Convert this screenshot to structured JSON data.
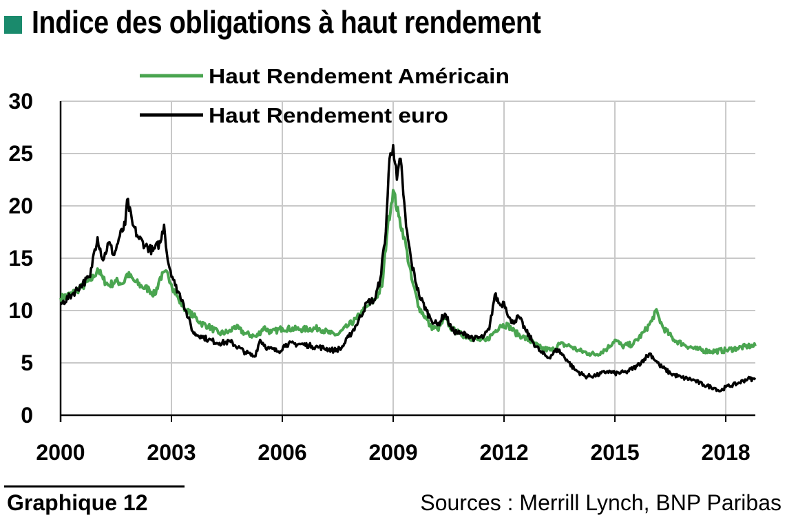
{
  "header": {
    "title": "Indice des obligations à haut rendement",
    "marker_color": "#1a8a6c"
  },
  "footer": {
    "label": "Graphique 12",
    "source": "Sources : Merrill Lynch, BNP Paribas"
  },
  "chart_data": {
    "type": "line",
    "title": "Indice des obligations à haut rendement",
    "xlabel": "",
    "ylabel": "",
    "xlim": [
      2000,
      2018.8
    ],
    "ylim": [
      0,
      30
    ],
    "x_ticks": [
      "2000",
      "2003",
      "2006",
      "2009",
      "2012",
      "2015",
      "2018"
    ],
    "y_ticks": [
      "0",
      "5",
      "10",
      "15",
      "20",
      "25",
      "30"
    ],
    "grid": true,
    "legend": "top-left",
    "series": [
      {
        "name": "Haut Rendement Américain",
        "color": "#4aa550",
        "points": [
          [
            2000.0,
            11.2
          ],
          [
            2000.3,
            11.6
          ],
          [
            2000.6,
            12.3
          ],
          [
            2000.9,
            13.2
          ],
          [
            2001.0,
            14.0
          ],
          [
            2001.15,
            13.0
          ],
          [
            2001.3,
            12.4
          ],
          [
            2001.5,
            12.8
          ],
          [
            2001.7,
            12.6
          ],
          [
            2001.8,
            13.5
          ],
          [
            2002.0,
            12.8
          ],
          [
            2002.2,
            12.3
          ],
          [
            2002.4,
            12.0
          ],
          [
            2002.55,
            11.5
          ],
          [
            2002.7,
            13.2
          ],
          [
            2002.9,
            13.6
          ],
          [
            2003.0,
            12.5
          ],
          [
            2003.2,
            11.0
          ],
          [
            2003.4,
            10.0
          ],
          [
            2003.6,
            9.5
          ],
          [
            2003.8,
            8.8
          ],
          [
            2004.0,
            8.5
          ],
          [
            2004.3,
            7.8
          ],
          [
            2004.6,
            8.0
          ],
          [
            2004.7,
            8.5
          ],
          [
            2005.0,
            7.8
          ],
          [
            2005.3,
            7.5
          ],
          [
            2005.5,
            8.4
          ],
          [
            2005.7,
            7.9
          ],
          [
            2006.0,
            8.3
          ],
          [
            2006.5,
            8.2
          ],
          [
            2007.0,
            8.3
          ],
          [
            2007.3,
            7.8
          ],
          [
            2007.5,
            7.7
          ],
          [
            2007.8,
            8.6
          ],
          [
            2008.0,
            9.2
          ],
          [
            2008.3,
            10.4
          ],
          [
            2008.5,
            11.0
          ],
          [
            2008.7,
            12.3
          ],
          [
            2008.85,
            18.0
          ],
          [
            2009.0,
            21.5
          ],
          [
            2009.15,
            19.0
          ],
          [
            2009.3,
            17.0
          ],
          [
            2009.5,
            13.0
          ],
          [
            2009.7,
            10.3
          ],
          [
            2009.9,
            9.2
          ],
          [
            2010.0,
            8.5
          ],
          [
            2010.2,
            8.2
          ],
          [
            2010.4,
            9.2
          ],
          [
            2010.6,
            8.2
          ],
          [
            2010.8,
            7.8
          ],
          [
            2011.0,
            7.5
          ],
          [
            2011.3,
            7.2
          ],
          [
            2011.5,
            7.1
          ],
          [
            2011.7,
            7.8
          ],
          [
            2011.9,
            8.6
          ],
          [
            2012.1,
            8.6
          ],
          [
            2012.3,
            7.9
          ],
          [
            2012.5,
            7.5
          ],
          [
            2012.8,
            6.9
          ],
          [
            2013.0,
            6.4
          ],
          [
            2013.3,
            6.2
          ],
          [
            2013.5,
            6.8
          ],
          [
            2013.8,
            6.6
          ],
          [
            2014.0,
            6.2
          ],
          [
            2014.3,
            5.9
          ],
          [
            2014.5,
            5.8
          ],
          [
            2014.8,
            6.4
          ],
          [
            2015.0,
            7.2
          ],
          [
            2015.2,
            6.6
          ],
          [
            2015.5,
            6.8
          ],
          [
            2015.8,
            8.0
          ],
          [
            2016.0,
            9.0
          ],
          [
            2016.1,
            10.0
          ],
          [
            2016.3,
            8.4
          ],
          [
            2016.6,
            7.2
          ],
          [
            2016.9,
            6.7
          ],
          [
            2017.2,
            6.3
          ],
          [
            2017.6,
            6.1
          ],
          [
            2018.0,
            6.2
          ],
          [
            2018.3,
            6.4
          ],
          [
            2018.6,
            6.6
          ],
          [
            2018.8,
            6.6
          ]
        ]
      },
      {
        "name": "Haut Rendement euro",
        "color": "#000000",
        "points": [
          [
            2000.0,
            10.6
          ],
          [
            2000.3,
            11.5
          ],
          [
            2000.6,
            12.6
          ],
          [
            2000.8,
            13.2
          ],
          [
            2000.9,
            15.5
          ],
          [
            2001.0,
            17.0
          ],
          [
            2001.15,
            14.8
          ],
          [
            2001.3,
            16.5
          ],
          [
            2001.45,
            15.3
          ],
          [
            2001.6,
            17.1
          ],
          [
            2001.75,
            18.2
          ],
          [
            2001.8,
            20.6
          ],
          [
            2001.95,
            18.2
          ],
          [
            2002.1,
            17.0
          ],
          [
            2002.3,
            16.2
          ],
          [
            2002.5,
            15.7
          ],
          [
            2002.7,
            16.5
          ],
          [
            2002.8,
            18.2
          ],
          [
            2002.9,
            14.8
          ],
          [
            2003.1,
            12.4
          ],
          [
            2003.3,
            11.0
          ],
          [
            2003.45,
            9.3
          ],
          [
            2003.6,
            7.8
          ],
          [
            2003.8,
            7.6
          ],
          [
            2004.0,
            7.2
          ],
          [
            2004.3,
            6.9
          ],
          [
            2004.6,
            7.0
          ],
          [
            2005.0,
            6.0
          ],
          [
            2005.25,
            5.6
          ],
          [
            2005.4,
            7.2
          ],
          [
            2005.6,
            6.4
          ],
          [
            2005.9,
            6.1
          ],
          [
            2006.1,
            6.8
          ],
          [
            2006.5,
            6.8
          ],
          [
            2006.8,
            6.6
          ],
          [
            2007.0,
            6.5
          ],
          [
            2007.4,
            6.2
          ],
          [
            2007.6,
            6.4
          ],
          [
            2007.8,
            7.5
          ],
          [
            2008.0,
            8.6
          ],
          [
            2008.3,
            10.8
          ],
          [
            2008.5,
            11.0
          ],
          [
            2008.65,
            13.0
          ],
          [
            2008.8,
            17.5
          ],
          [
            2008.9,
            24.5
          ],
          [
            2009.0,
            25.8
          ],
          [
            2009.1,
            22.5
          ],
          [
            2009.2,
            24.5
          ],
          [
            2009.35,
            18.0
          ],
          [
            2009.5,
            14.5
          ],
          [
            2009.7,
            11.5
          ],
          [
            2009.9,
            10.0
          ],
          [
            2010.0,
            9.3
          ],
          [
            2010.2,
            8.6
          ],
          [
            2010.4,
            9.7
          ],
          [
            2010.6,
            8.1
          ],
          [
            2010.8,
            7.8
          ],
          [
            2011.0,
            7.7
          ],
          [
            2011.2,
            7.3
          ],
          [
            2011.45,
            7.5
          ],
          [
            2011.6,
            8.2
          ],
          [
            2011.75,
            11.5
          ],
          [
            2011.9,
            10.5
          ],
          [
            2012.0,
            10.8
          ],
          [
            2012.2,
            8.8
          ],
          [
            2012.4,
            9.4
          ],
          [
            2012.6,
            8.0
          ],
          [
            2012.8,
            6.9
          ],
          [
            2013.0,
            6.0
          ],
          [
            2013.2,
            5.5
          ],
          [
            2013.45,
            6.3
          ],
          [
            2013.7,
            5.3
          ],
          [
            2013.9,
            4.4
          ],
          [
            2014.2,
            3.7
          ],
          [
            2014.5,
            3.8
          ],
          [
            2014.8,
            4.2
          ],
          [
            2015.0,
            4.0
          ],
          [
            2015.3,
            4.1
          ],
          [
            2015.6,
            4.7
          ],
          [
            2015.8,
            5.4
          ],
          [
            2015.95,
            5.9
          ],
          [
            2016.2,
            4.8
          ],
          [
            2016.5,
            4.0
          ],
          [
            2016.8,
            3.6
          ],
          [
            2017.1,
            3.4
          ],
          [
            2017.4,
            2.9
          ],
          [
            2017.7,
            2.6
          ],
          [
            2017.85,
            2.3
          ],
          [
            2018.0,
            2.7
          ],
          [
            2018.3,
            3.0
          ],
          [
            2018.6,
            3.5
          ],
          [
            2018.8,
            3.4
          ]
        ]
      }
    ]
  }
}
